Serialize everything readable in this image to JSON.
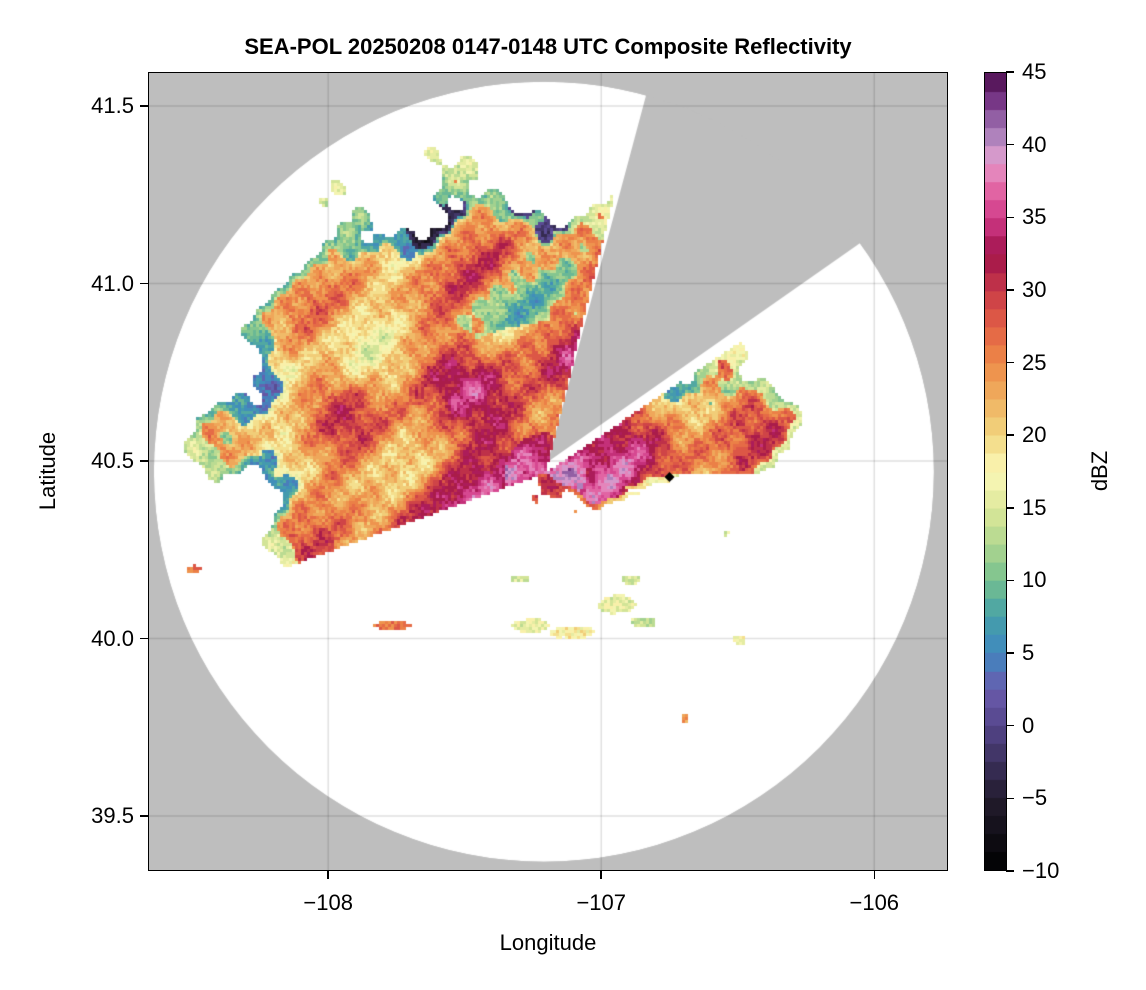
{
  "chart_data": {
    "type": "heatmap",
    "title": "SEA-POL 20250208 0147-0148 UTC Composite Reflectivity",
    "xlabel": "Longitude",
    "ylabel": "Latitude",
    "xlim": [
      -108.66,
      -105.73
    ],
    "ylim": [
      39.345,
      41.596
    ],
    "xticks": [
      -108,
      -107,
      -106
    ],
    "xtick_labels": [
      "−108",
      "−107",
      "−106"
    ],
    "yticks": [
      39.5,
      40.0,
      40.5,
      41.0,
      41.5
    ],
    "ytick_labels": [
      "39.5",
      "40.0",
      "40.5",
      "41.0",
      "41.5"
    ],
    "grid": true,
    "background_color": "#bebebe",
    "radar_coverage_color": "#ffffff",
    "radar_center": {
      "lon": -107.21,
      "lat": 40.47
    },
    "marker": {
      "lon": -106.75,
      "lat": 40.455,
      "shape": "diamond",
      "color": "#000000"
    },
    "colorbar": {
      "label": "dBZ",
      "range": [
        -10,
        45
      ],
      "bin_width": 1.25,
      "ticks": [
        -10,
        -5,
        0,
        5,
        10,
        15,
        20,
        25,
        30,
        35,
        40,
        45
      ],
      "tick_labels": [
        "−10",
        "−5",
        "0",
        "5",
        "10",
        "15",
        "20",
        "25",
        "30",
        "35",
        "40",
        "45"
      ],
      "colormap": [
        [
          -10,
          "#000000"
        ],
        [
          -5,
          "#231c2e"
        ],
        [
          0,
          "#54458a"
        ],
        [
          2.5,
          "#6a5bad"
        ],
        [
          5,
          "#3f88c0"
        ],
        [
          7.5,
          "#45a0a8"
        ],
        [
          10,
          "#76c08f"
        ],
        [
          12.5,
          "#b0d68f"
        ],
        [
          15,
          "#dde89a"
        ],
        [
          17.5,
          "#fbf8b8"
        ],
        [
          20,
          "#f2d680"
        ],
        [
          22.5,
          "#efb060"
        ],
        [
          25,
          "#ee8a48"
        ],
        [
          27.5,
          "#e26045"
        ],
        [
          30,
          "#c83a48"
        ],
        [
          32.5,
          "#a0124a"
        ],
        [
          35,
          "#d03a88"
        ],
        [
          37.5,
          "#e672ac"
        ],
        [
          39,
          "#e0a0cf"
        ],
        [
          41,
          "#a47bb8"
        ],
        [
          43,
          "#7a3a8a"
        ],
        [
          45,
          "#4a0a4a"
        ]
      ]
    }
  }
}
